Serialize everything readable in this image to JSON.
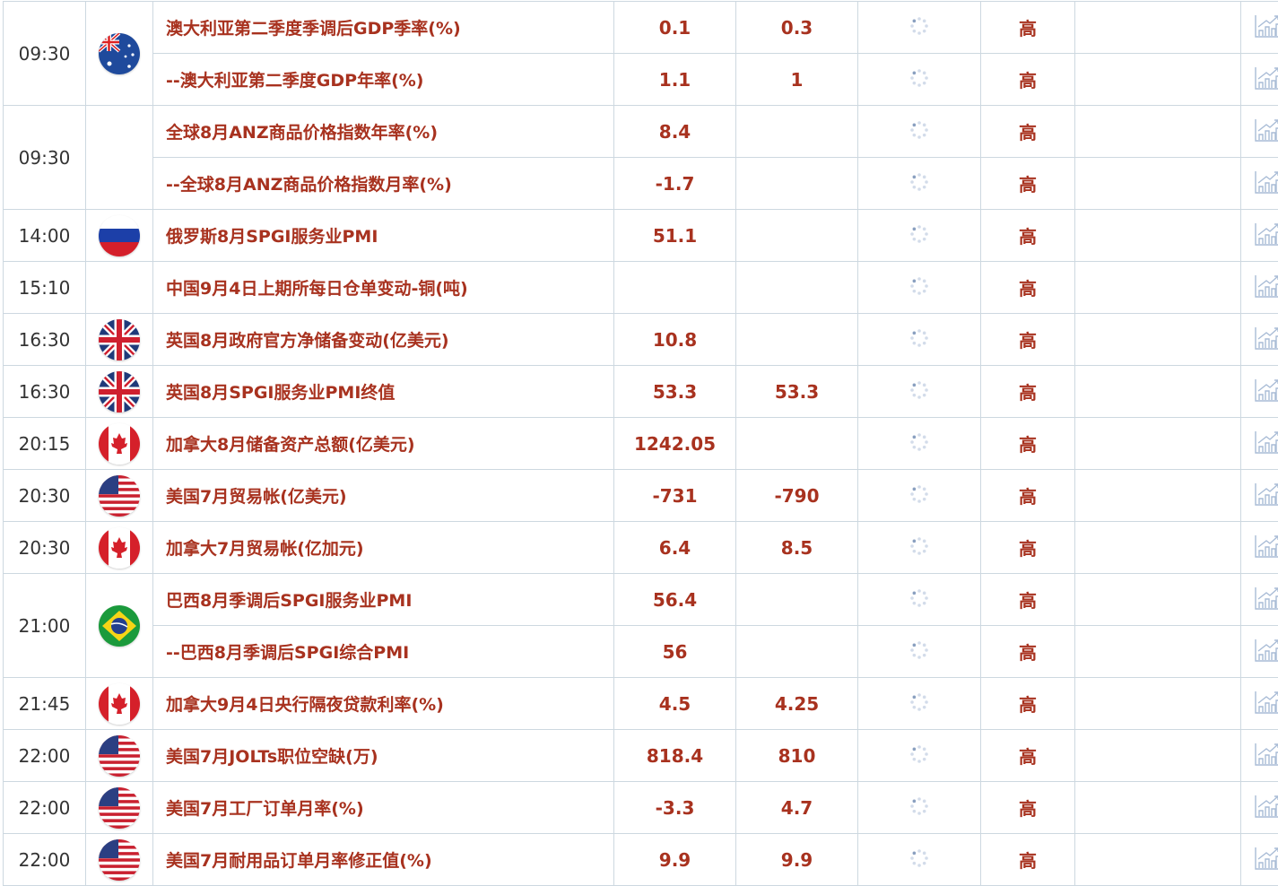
{
  "colors": {
    "text_red": "#a8321f",
    "border": "#cdd8e0",
    "icon": "#9fb3cc"
  },
  "importance_label": "高",
  "groups": [
    {
      "time": "09:30",
      "flag": "au",
      "items": [
        {
          "name": "澳大利亚第二季度季调后GDP季率(%)",
          "previous": "0.1",
          "forecast": "0.3"
        },
        {
          "name": "--澳大利亚第二季度GDP年率(%)",
          "previous": "1.1",
          "forecast": "1"
        }
      ]
    },
    {
      "time": "09:30",
      "flag": "none",
      "items": [
        {
          "name": "全球8月ANZ商品价格指数年率(%)",
          "previous": "8.4",
          "forecast": ""
        },
        {
          "name": "--全球8月ANZ商品价格指数月率(%)",
          "previous": "-1.7",
          "forecast": ""
        }
      ]
    },
    {
      "time": "14:00",
      "flag": "ru",
      "items": [
        {
          "name": "俄罗斯8月SPGI服务业PMI",
          "previous": "51.1",
          "forecast": ""
        }
      ]
    },
    {
      "time": "15:10",
      "flag": "none",
      "items": [
        {
          "name": "中国9月4日上期所每日仓单变动-铜(吨)",
          "previous": "",
          "forecast": ""
        }
      ]
    },
    {
      "time": "16:30",
      "flag": "gb",
      "items": [
        {
          "name": "英国8月政府官方净储备变动(亿美元)",
          "previous": "10.8",
          "forecast": ""
        }
      ]
    },
    {
      "time": "16:30",
      "flag": "gb",
      "items": [
        {
          "name": "英国8月SPGI服务业PMI终值",
          "previous": "53.3",
          "forecast": "53.3"
        }
      ]
    },
    {
      "time": "20:15",
      "flag": "ca",
      "items": [
        {
          "name": "加拿大8月储备资产总额(亿美元)",
          "previous": "1242.05",
          "forecast": ""
        }
      ]
    },
    {
      "time": "20:30",
      "flag": "us",
      "items": [
        {
          "name": "美国7月贸易帐(亿美元)",
          "previous": "-731",
          "forecast": "-790"
        }
      ]
    },
    {
      "time": "20:30",
      "flag": "ca",
      "items": [
        {
          "name": "加拿大7月贸易帐(亿加元)",
          "previous": "6.4",
          "forecast": "8.5"
        }
      ]
    },
    {
      "time": "21:00",
      "flag": "br",
      "items": [
        {
          "name": "巴西8月季调后SPGI服务业PMI",
          "previous": "56.4",
          "forecast": ""
        },
        {
          "name": "--巴西8月季调后SPGI综合PMI",
          "previous": "56",
          "forecast": ""
        }
      ]
    },
    {
      "time": "21:45",
      "flag": "ca",
      "items": [
        {
          "name": "加拿大9月4日央行隔夜贷款利率(%)",
          "previous": "4.5",
          "forecast": "4.25"
        }
      ]
    },
    {
      "time": "22:00",
      "flag": "us",
      "items": [
        {
          "name": "美国7月JOLTs职位空缺(万)",
          "previous": "818.4",
          "forecast": "810"
        }
      ]
    },
    {
      "time": "22:00",
      "flag": "us",
      "items": [
        {
          "name": "美国7月工厂订单月率(%)",
          "previous": "-3.3",
          "forecast": "4.7"
        }
      ]
    },
    {
      "time": "22:00",
      "flag": "us",
      "items": [
        {
          "name": "美国7月耐用品订单月率修正值(%)",
          "previous": "9.9",
          "forecast": "9.9"
        }
      ]
    }
  ]
}
